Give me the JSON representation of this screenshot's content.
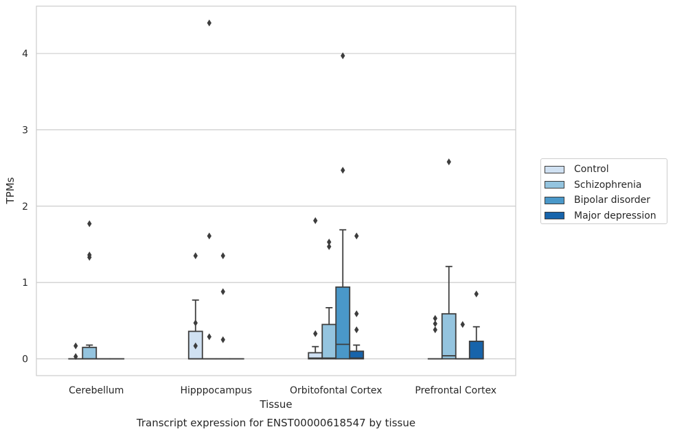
{
  "chart_data": {
    "type": "box",
    "title": "",
    "caption": "Transcript expression for ENST00000618547 by tissue",
    "xlabel": "Tissue",
    "ylabel": "TPMs",
    "ylim": [
      -0.22,
      4.62
    ],
    "yticks": [
      0,
      1,
      2,
      3,
      4
    ],
    "grid": true,
    "legend_position": "right",
    "categories": [
      "Cerebellum",
      "Hipppocampus",
      "Orbitofontal Cortex",
      "Prefrontal Cortex"
    ],
    "series": [
      {
        "name": "Control",
        "color": "#d0e1f2",
        "boxes": [
          {
            "q1": 0,
            "median": 0,
            "q3": 0,
            "whislo": 0,
            "whishi": 0,
            "fliers": [
              0.17,
              0.03
            ]
          },
          {
            "q1": 0,
            "median": 0,
            "q3": 0.36,
            "whislo": 0,
            "whishi": 0.77,
            "fliers": [
              1.35,
              0.47,
              0.17
            ]
          },
          {
            "q1": 0,
            "median": 0.01,
            "q3": 0.08,
            "whislo": 0,
            "whishi": 0.16,
            "fliers": [
              1.81,
              0.33
            ]
          },
          {
            "q1": 0,
            "median": 0,
            "q3": 0,
            "whislo": 0,
            "whishi": 0,
            "fliers": [
              0.53,
              0.46,
              0.38
            ]
          }
        ]
      },
      {
        "name": "Schizophrenia",
        "color": "#94c4df",
        "boxes": [
          {
            "q1": 0,
            "median": 0,
            "q3": 0.15,
            "whislo": 0,
            "whishi": 0.18,
            "fliers": [
              1.77,
              1.36,
              1.33
            ]
          },
          {
            "q1": 0,
            "median": 0,
            "q3": 0,
            "whislo": 0,
            "whishi": 0,
            "fliers": [
              4.4,
              1.61,
              0.29
            ]
          },
          {
            "q1": 0,
            "median": 0.01,
            "q3": 0.45,
            "whislo": 0,
            "whishi": 0.67,
            "fliers": [
              1.53,
              1.47
            ]
          },
          {
            "q1": 0,
            "median": 0.04,
            "q3": 0.59,
            "whislo": 0,
            "whishi": 1.21,
            "fliers": [
              2.58
            ]
          }
        ]
      },
      {
        "name": "Bipolar disorder",
        "color": "#4a98c9",
        "boxes": [
          {
            "q1": 0,
            "median": 0,
            "q3": 0,
            "whislo": 0,
            "whishi": 0,
            "fliers": []
          },
          {
            "q1": 0,
            "median": 0,
            "q3": 0,
            "whislo": 0,
            "whishi": 0,
            "fliers": [
              1.35,
              0.88,
              0.25
            ]
          },
          {
            "q1": 0,
            "median": 0.19,
            "q3": 0.94,
            "whislo": 0,
            "whishi": 1.69,
            "fliers": [
              3.97,
              2.47
            ]
          },
          {
            "q1": 0,
            "median": 0,
            "q3": 0,
            "whislo": 0,
            "whishi": 0,
            "fliers": [
              0.45
            ]
          }
        ]
      },
      {
        "name": "Major depression",
        "color": "#1764ab",
        "boxes": [
          {
            "q1": 0,
            "median": 0,
            "q3": 0,
            "whislo": 0,
            "whishi": 0,
            "fliers": []
          },
          {
            "q1": 0,
            "median": 0,
            "q3": 0,
            "whislo": 0,
            "whishi": 0,
            "fliers": []
          },
          {
            "q1": 0,
            "median": 0.01,
            "q3": 0.1,
            "whislo": 0,
            "whishi": 0.18,
            "fliers": [
              1.61,
              0.59,
              0.38
            ]
          },
          {
            "q1": 0,
            "median": 0,
            "q3": 0.23,
            "whislo": 0,
            "whishi": 0.42,
            "fliers": [
              0.85
            ]
          }
        ]
      }
    ]
  }
}
